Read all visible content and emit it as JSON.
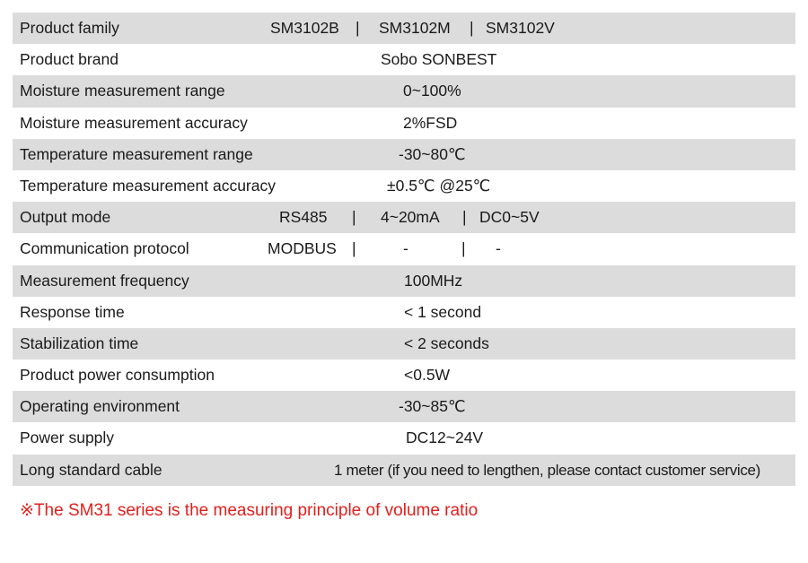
{
  "spec_rows": [
    {
      "label": "Product family",
      "values": [
        "SM3102B",
        "SM3102M",
        "SM3102V"
      ]
    },
    {
      "label": "Product brand",
      "value": "Sobo SONBEST"
    },
    {
      "label": "Moisture measurement range",
      "value": "0~100%"
    },
    {
      "label": "Moisture measurement accuracy",
      "value": "2%FSD"
    },
    {
      "label": "Temperature measurement range",
      "value": "-30~80℃"
    },
    {
      "label": "Temperature measurement accuracy",
      "value": "±0.5℃ @25℃"
    },
    {
      "label": "Output mode",
      "values": [
        "RS485",
        "4~20mA",
        "DC0~5V"
      ]
    },
    {
      "label": "Communication protocol",
      "values": [
        "MODBUS",
        "-",
        "-"
      ]
    },
    {
      "label": "Measurement frequency",
      "value": "100MHz"
    },
    {
      "label": "Response time",
      "value": "< 1 second"
    },
    {
      "label": "Stabilization time",
      "value": "< 2 seconds"
    },
    {
      "label": "Product power consumption",
      "value": "<0.5W"
    },
    {
      "label": "Operating environment",
      "value": "-30~85℃"
    },
    {
      "label": "Power supply",
      "value": "DC12~24V"
    },
    {
      "label": "Long standard cable",
      "value": "1 meter (if you need to lengthen, please contact customer service)"
    }
  ],
  "separator": "|",
  "footnote": "※The SM31 series is the measuring principle of volume ratio",
  "colors": {
    "row_shade": "#dcdcdc",
    "footnote": "#e1201c"
  }
}
